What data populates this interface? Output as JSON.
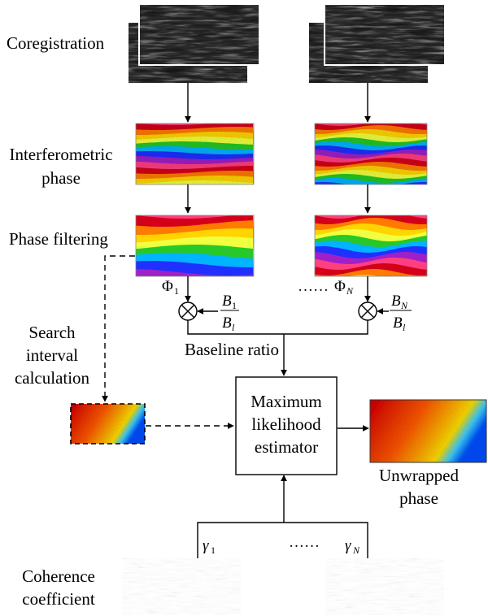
{
  "labels": {
    "coregistration": "Coregistration",
    "interferometric_1": "Interferometric",
    "interferometric_2": "phase",
    "phase_filtering": "Phase filtering",
    "search_1": "Search",
    "search_2": "interval",
    "search_3": "calculation",
    "baseline_ratio": "Baseline ratio",
    "mle_1": "Maximum",
    "mle_2": "likelihood",
    "mle_3": "estimator",
    "unwrapped_1": "Unwrapped",
    "unwrapped_2": "phase",
    "coherence_1": "Coherence",
    "coherence_2": "coefficient"
  },
  "math": {
    "phi": "Φ",
    "phi_sub_1": "1",
    "phi_sub_n": "N",
    "b": "B",
    "b_sub_1": "1",
    "b_sub_n": "N",
    "b_sub_l": "l",
    "gamma": "γ",
    "gamma_sub_1": "1",
    "gamma_sub_n": "N",
    "ellipsis": "……",
    "otimes": "⊗"
  },
  "colors": {
    "stroke": "#000000",
    "rainbow": [
      "#d4001a",
      "#ff7a00",
      "#ffd400",
      "#f0ff40",
      "#28c828",
      "#00b4ff",
      "#2030ff",
      "#a020c8",
      "#ff4080"
    ],
    "unwrapped": [
      "#d40000",
      "#ff5a00",
      "#ffc000",
      "#ffe800",
      "#40d0ff",
      "#0050ff"
    ]
  }
}
